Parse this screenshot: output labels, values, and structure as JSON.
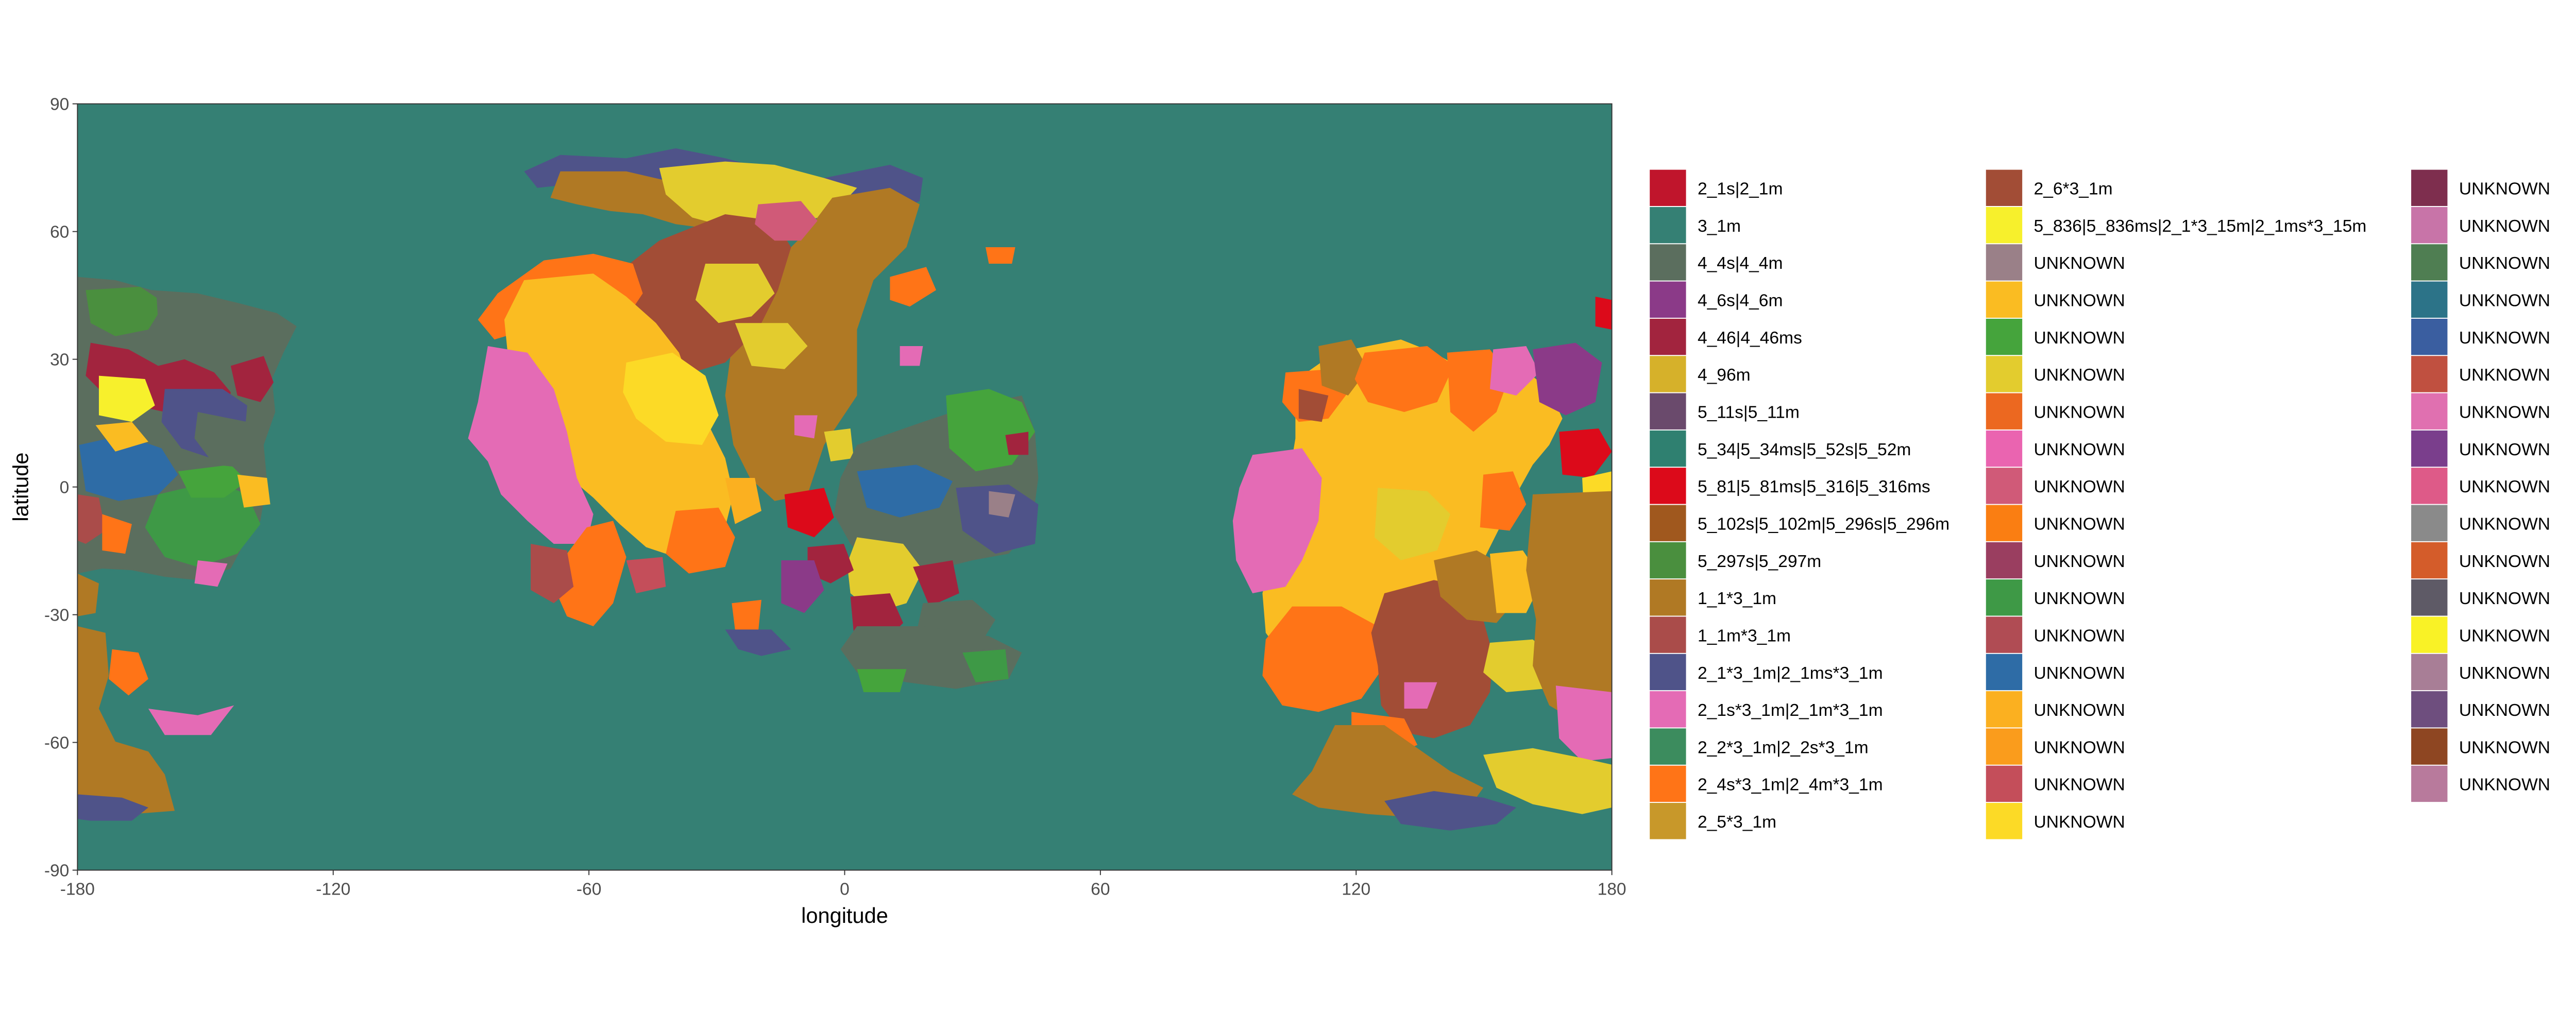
{
  "axes": {
    "x_label": "longitude",
    "y_label": "latitude",
    "x_ticks": [
      -180,
      -120,
      -60,
      0,
      60,
      120,
      180
    ],
    "y_ticks": [
      -90,
      -60,
      -30,
      0,
      30,
      60,
      90
    ],
    "xlim": [
      -180,
      180
    ],
    "ylim": [
      -90,
      90
    ],
    "background": "#358074"
  },
  "legend": {
    "placement": "right",
    "columns": [
      [
        {
          "label": "2_1s|2_1m",
          "color": "#C0152C"
        },
        {
          "label": "3_1m",
          "color": "#358074"
        },
        {
          "label": "4_4s|4_4m",
          "color": "#5B6E5E"
        },
        {
          "label": "4_6s|4_6m",
          "color": "#8B3A88"
        },
        {
          "label": "4_46|4_46ms",
          "color": "#A2243E"
        },
        {
          "label": "4_96m",
          "color": "#D6B12A"
        },
        {
          "label": "5_11s|5_11m",
          "color": "#6A4A6C"
        },
        {
          "label": "5_34|5_34ms|5_52s|5_52m",
          "color": "#2F8070"
        },
        {
          "label": "5_81|5_81ms|5_316|5_316ms",
          "color": "#DC0A1A"
        },
        {
          "label": "5_102s|5_102m|5_296s|5_296m",
          "color": "#A0581E"
        },
        {
          "label": "5_297s|5_297m",
          "color": "#4A8F3E"
        },
        {
          "label": "1_1*3_1m",
          "color": "#B07924"
        },
        {
          "label": "1_1m*3_1m",
          "color": "#AA4C4A"
        },
        {
          "label": "2_1*3_1m|2_1ms*3_1m",
          "color": "#4F5389"
        },
        {
          "label": "2_1s*3_1m|2_1m*3_1m",
          "color": "#E46BB5"
        },
        {
          "label": "2_2*3_1m|2_2s*3_1m",
          "color": "#3C8C5E"
        },
        {
          "label": "2_4s*3_1m|2_4m*3_1m",
          "color": "#FF7417"
        },
        {
          "label": "2_5*3_1m",
          "color": "#C8982A"
        }
      ],
      [
        {
          "label": "2_6*3_1m",
          "color": "#A24D36"
        },
        {
          "label": "5_836|5_836ms|2_1*3_15m|2_1ms*3_15m",
          "color": "#F7F02C"
        },
        {
          "label": "UNKNOWN",
          "color": "#9A8088"
        },
        {
          "label": "UNKNOWN",
          "color": "#FABC22"
        },
        {
          "label": "UNKNOWN",
          "color": "#45A43C"
        },
        {
          "label": "UNKNOWN",
          "color": "#E3CC2E"
        },
        {
          "label": "UNKNOWN",
          "color": "#EC6820"
        },
        {
          "label": "UNKNOWN",
          "color": "#EA64B0"
        },
        {
          "label": "UNKNOWN",
          "color": "#D05A78"
        },
        {
          "label": "UNKNOWN",
          "color": "#FA7E12"
        },
        {
          "label": "UNKNOWN",
          "color": "#9A3E60"
        },
        {
          "label": "UNKNOWN",
          "color": "#3E9946"
        },
        {
          "label": "UNKNOWN",
          "color": "#B04C54"
        },
        {
          "label": "UNKNOWN",
          "color": "#2E6CA6"
        },
        {
          "label": "UNKNOWN",
          "color": "#FBB020"
        },
        {
          "label": "UNKNOWN",
          "color": "#FA9C1C"
        },
        {
          "label": "UNKNOWN",
          "color": "#C44E5A"
        },
        {
          "label": "UNKNOWN",
          "color": "#FCDA26"
        }
      ],
      [
        {
          "label": "UNKNOWN",
          "color": "#7E2E4E"
        },
        {
          "label": "UNKNOWN",
          "color": "#C874A8"
        },
        {
          "label": "UNKNOWN",
          "color": "#4F7E52"
        },
        {
          "label": "UNKNOWN",
          "color": "#2C7388"
        },
        {
          "label": "UNKNOWN",
          "color": "#3A5EA0"
        },
        {
          "label": "UNKNOWN",
          "color": "#C05040"
        },
        {
          "label": "UNKNOWN",
          "color": "#E070B0"
        },
        {
          "label": "UNKNOWN",
          "color": "#7A3E8C"
        },
        {
          "label": "UNKNOWN",
          "color": "#DE5A88"
        },
        {
          "label": "UNKNOWN",
          "color": "#8A8A8A"
        },
        {
          "label": "UNKNOWN",
          "color": "#D45C2A"
        },
        {
          "label": "UNKNOWN",
          "color": "#5E5A66"
        },
        {
          "label": "UNKNOWN",
          "color": "#F9F226"
        },
        {
          "label": "UNKNOWN",
          "color": "#A87E96"
        },
        {
          "label": "UNKNOWN",
          "color": "#6E4E7E"
        },
        {
          "label": "UNKNOWN",
          "color": "#8E4622"
        },
        {
          "label": "UNKNOWN",
          "color": "#B87A9C"
        }
      ]
    ]
  }
}
